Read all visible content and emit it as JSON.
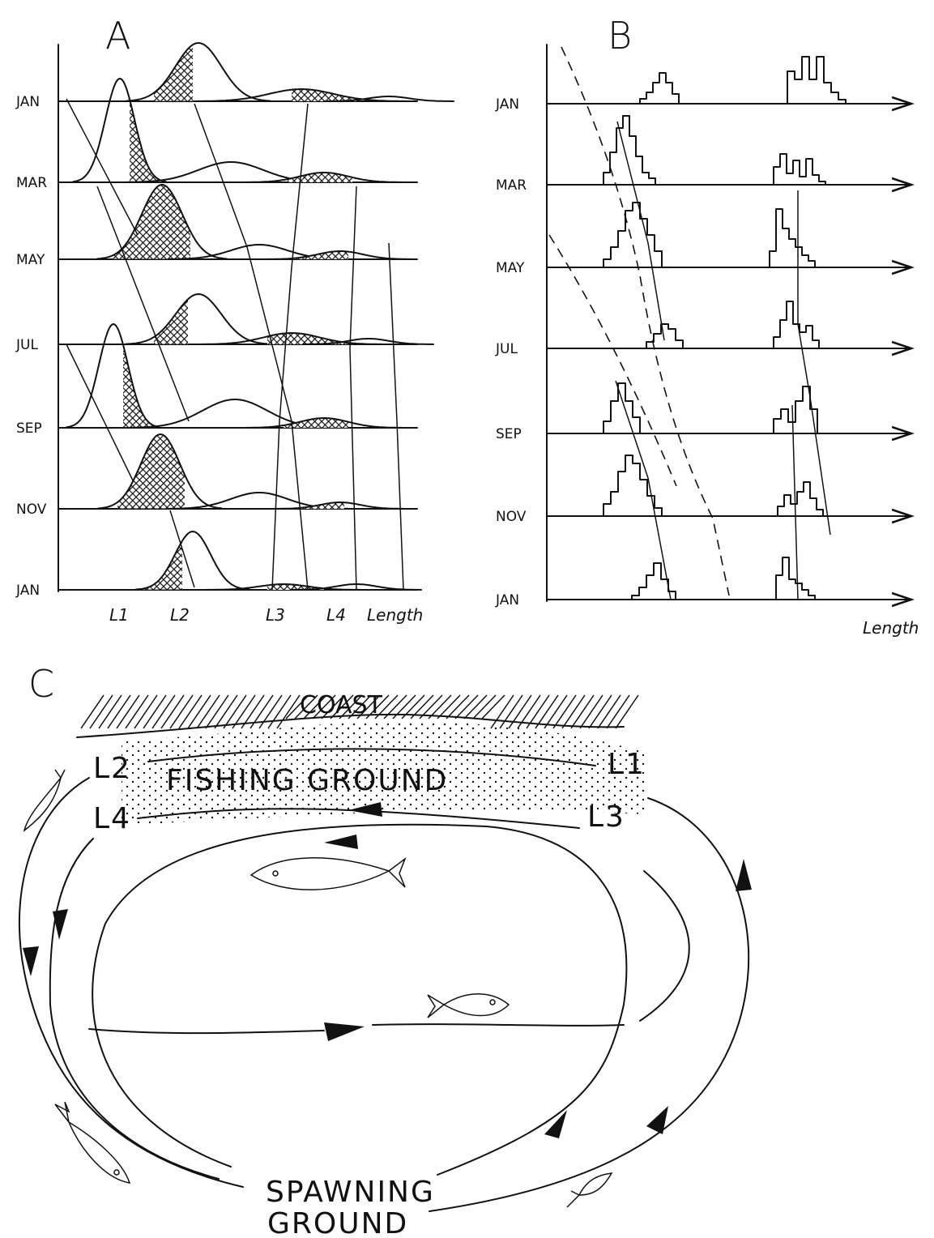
{
  "panel_a": {
    "label": "A",
    "months": [
      "JAN",
      "MAR",
      "MAY",
      "JUL",
      "SEP",
      "NOV",
      "JAN"
    ],
    "x_labels": [
      "L1",
      "L2",
      "L3",
      "L4",
      "Length"
    ]
  },
  "panel_b": {
    "label": "B",
    "months": [
      "JAN",
      "MAR",
      "MAY",
      "JUL",
      "SEP",
      "NOV",
      "JAN"
    ],
    "x_label": "Length"
  },
  "panel_c": {
    "label": "C",
    "coast": "COAST",
    "fishing_ground": "FISHING GROUND",
    "size_labels": [
      "L2",
      "L1",
      "L4",
      "L3"
    ],
    "spawning_ground": [
      "SPAWNING",
      "GROUND"
    ]
  }
}
